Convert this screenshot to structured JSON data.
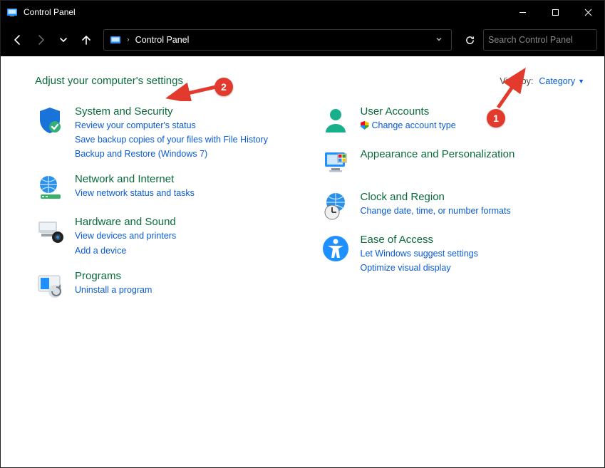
{
  "window": {
    "title": "Control Panel"
  },
  "navbar": {
    "breadcrumb": "Control Panel",
    "search_placeholder": "Search Control Panel"
  },
  "heading": "Adjust your computer's settings",
  "viewby": {
    "label": "View by:",
    "value": "Category"
  },
  "left": [
    {
      "key": "system-security",
      "title": "System and Security",
      "links": [
        "Review your computer's status",
        "Save backup copies of your files with File History",
        "Backup and Restore (Windows 7)"
      ]
    },
    {
      "key": "network-internet",
      "title": "Network and Internet",
      "links": [
        "View network status and tasks"
      ]
    },
    {
      "key": "hardware-sound",
      "title": "Hardware and Sound",
      "links": [
        "View devices and printers",
        "Add a device"
      ]
    },
    {
      "key": "programs",
      "title": "Programs",
      "links": [
        "Uninstall a program"
      ]
    }
  ],
  "right": [
    {
      "key": "user-accounts",
      "title": "User Accounts",
      "links": [
        "Change account type"
      ],
      "shield_first": true
    },
    {
      "key": "appearance",
      "title": "Appearance and Personalization",
      "links": []
    },
    {
      "key": "clock-region",
      "title": "Clock and Region",
      "links": [
        "Change date, time, or number formats"
      ]
    },
    {
      "key": "ease-of-access",
      "title": "Ease of Access",
      "links": [
        "Let Windows suggest settings",
        "Optimize visual display"
      ]
    }
  ],
  "annotations": {
    "badge1": "1",
    "badge2": "2"
  },
  "colors": {
    "heading_green": "#0a6b3a",
    "link_blue": "#0a5bd6",
    "annotation_red": "#e23b2e",
    "window_chrome": "#000000"
  }
}
